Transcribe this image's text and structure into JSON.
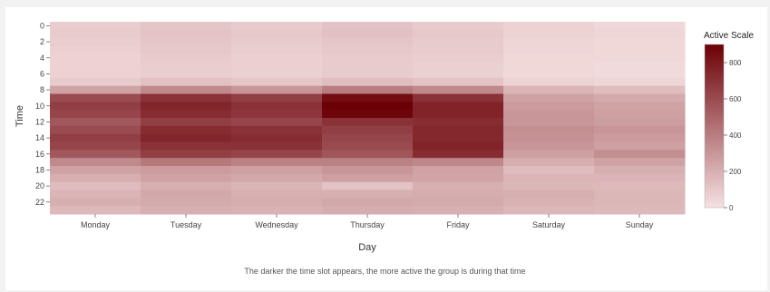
{
  "caption": "The darker the time slot appears, the more active the group is during that time",
  "chart_data": {
    "type": "heatmap",
    "title": "",
    "xlabel": "Day",
    "ylabel": "Time",
    "x_categories": [
      "Monday",
      "Tuesday",
      "Wednesday",
      "Thursday",
      "Friday",
      "Saturday",
      "Sunday"
    ],
    "y_categories": [
      0,
      1,
      2,
      3,
      4,
      5,
      6,
      7,
      8,
      9,
      10,
      11,
      12,
      13,
      14,
      15,
      16,
      17,
      18,
      19,
      20,
      21,
      22,
      23
    ],
    "y_tick_labels": [
      0,
      2,
      4,
      6,
      8,
      10,
      12,
      14,
      16,
      18,
      20,
      22
    ],
    "legend": {
      "title": "Active Scale",
      "min": 0,
      "max": 900,
      "ticks": [
        0,
        200,
        400,
        600,
        800
      ],
      "color_low": "#f6e1e2",
      "color_high": "#6b0006",
      "position": "right"
    },
    "values": [
      [
        80,
        110,
        90,
        120,
        90,
        60,
        40
      ],
      [
        90,
        120,
        100,
        130,
        100,
        60,
        50
      ],
      [
        80,
        110,
        90,
        110,
        90,
        50,
        40
      ],
      [
        70,
        100,
        80,
        100,
        90,
        50,
        40
      ],
      [
        60,
        90,
        70,
        90,
        80,
        40,
        40
      ],
      [
        60,
        80,
        70,
        90,
        70,
        40,
        30
      ],
      [
        60,
        80,
        70,
        90,
        70,
        40,
        30
      ],
      [
        90,
        130,
        110,
        140,
        120,
        60,
        50
      ],
      [
        250,
        350,
        300,
        400,
        350,
        180,
        150
      ],
      [
        600,
        700,
        650,
        850,
        700,
        250,
        220
      ],
      [
        650,
        750,
        700,
        900,
        760,
        280,
        250
      ],
      [
        620,
        720,
        680,
        880,
        760,
        300,
        260
      ],
      [
        550,
        650,
        620,
        700,
        720,
        300,
        270
      ],
      [
        600,
        720,
        700,
        650,
        740,
        330,
        300
      ],
      [
        650,
        750,
        720,
        620,
        740,
        320,
        280
      ],
      [
        620,
        700,
        700,
        600,
        760,
        300,
        260
      ],
      [
        550,
        650,
        620,
        560,
        720,
        260,
        330
      ],
      [
        350,
        420,
        380,
        380,
        360,
        200,
        250
      ],
      [
        250,
        280,
        260,
        300,
        250,
        150,
        200
      ],
      [
        200,
        250,
        230,
        260,
        240,
        180,
        180
      ],
      [
        150,
        200,
        180,
        120,
        200,
        170,
        160
      ],
      [
        180,
        230,
        200,
        200,
        210,
        200,
        170
      ],
      [
        200,
        220,
        210,
        230,
        220,
        190,
        170
      ],
      [
        160,
        200,
        190,
        210,
        200,
        170,
        160
      ]
    ],
    "grid": false
  }
}
